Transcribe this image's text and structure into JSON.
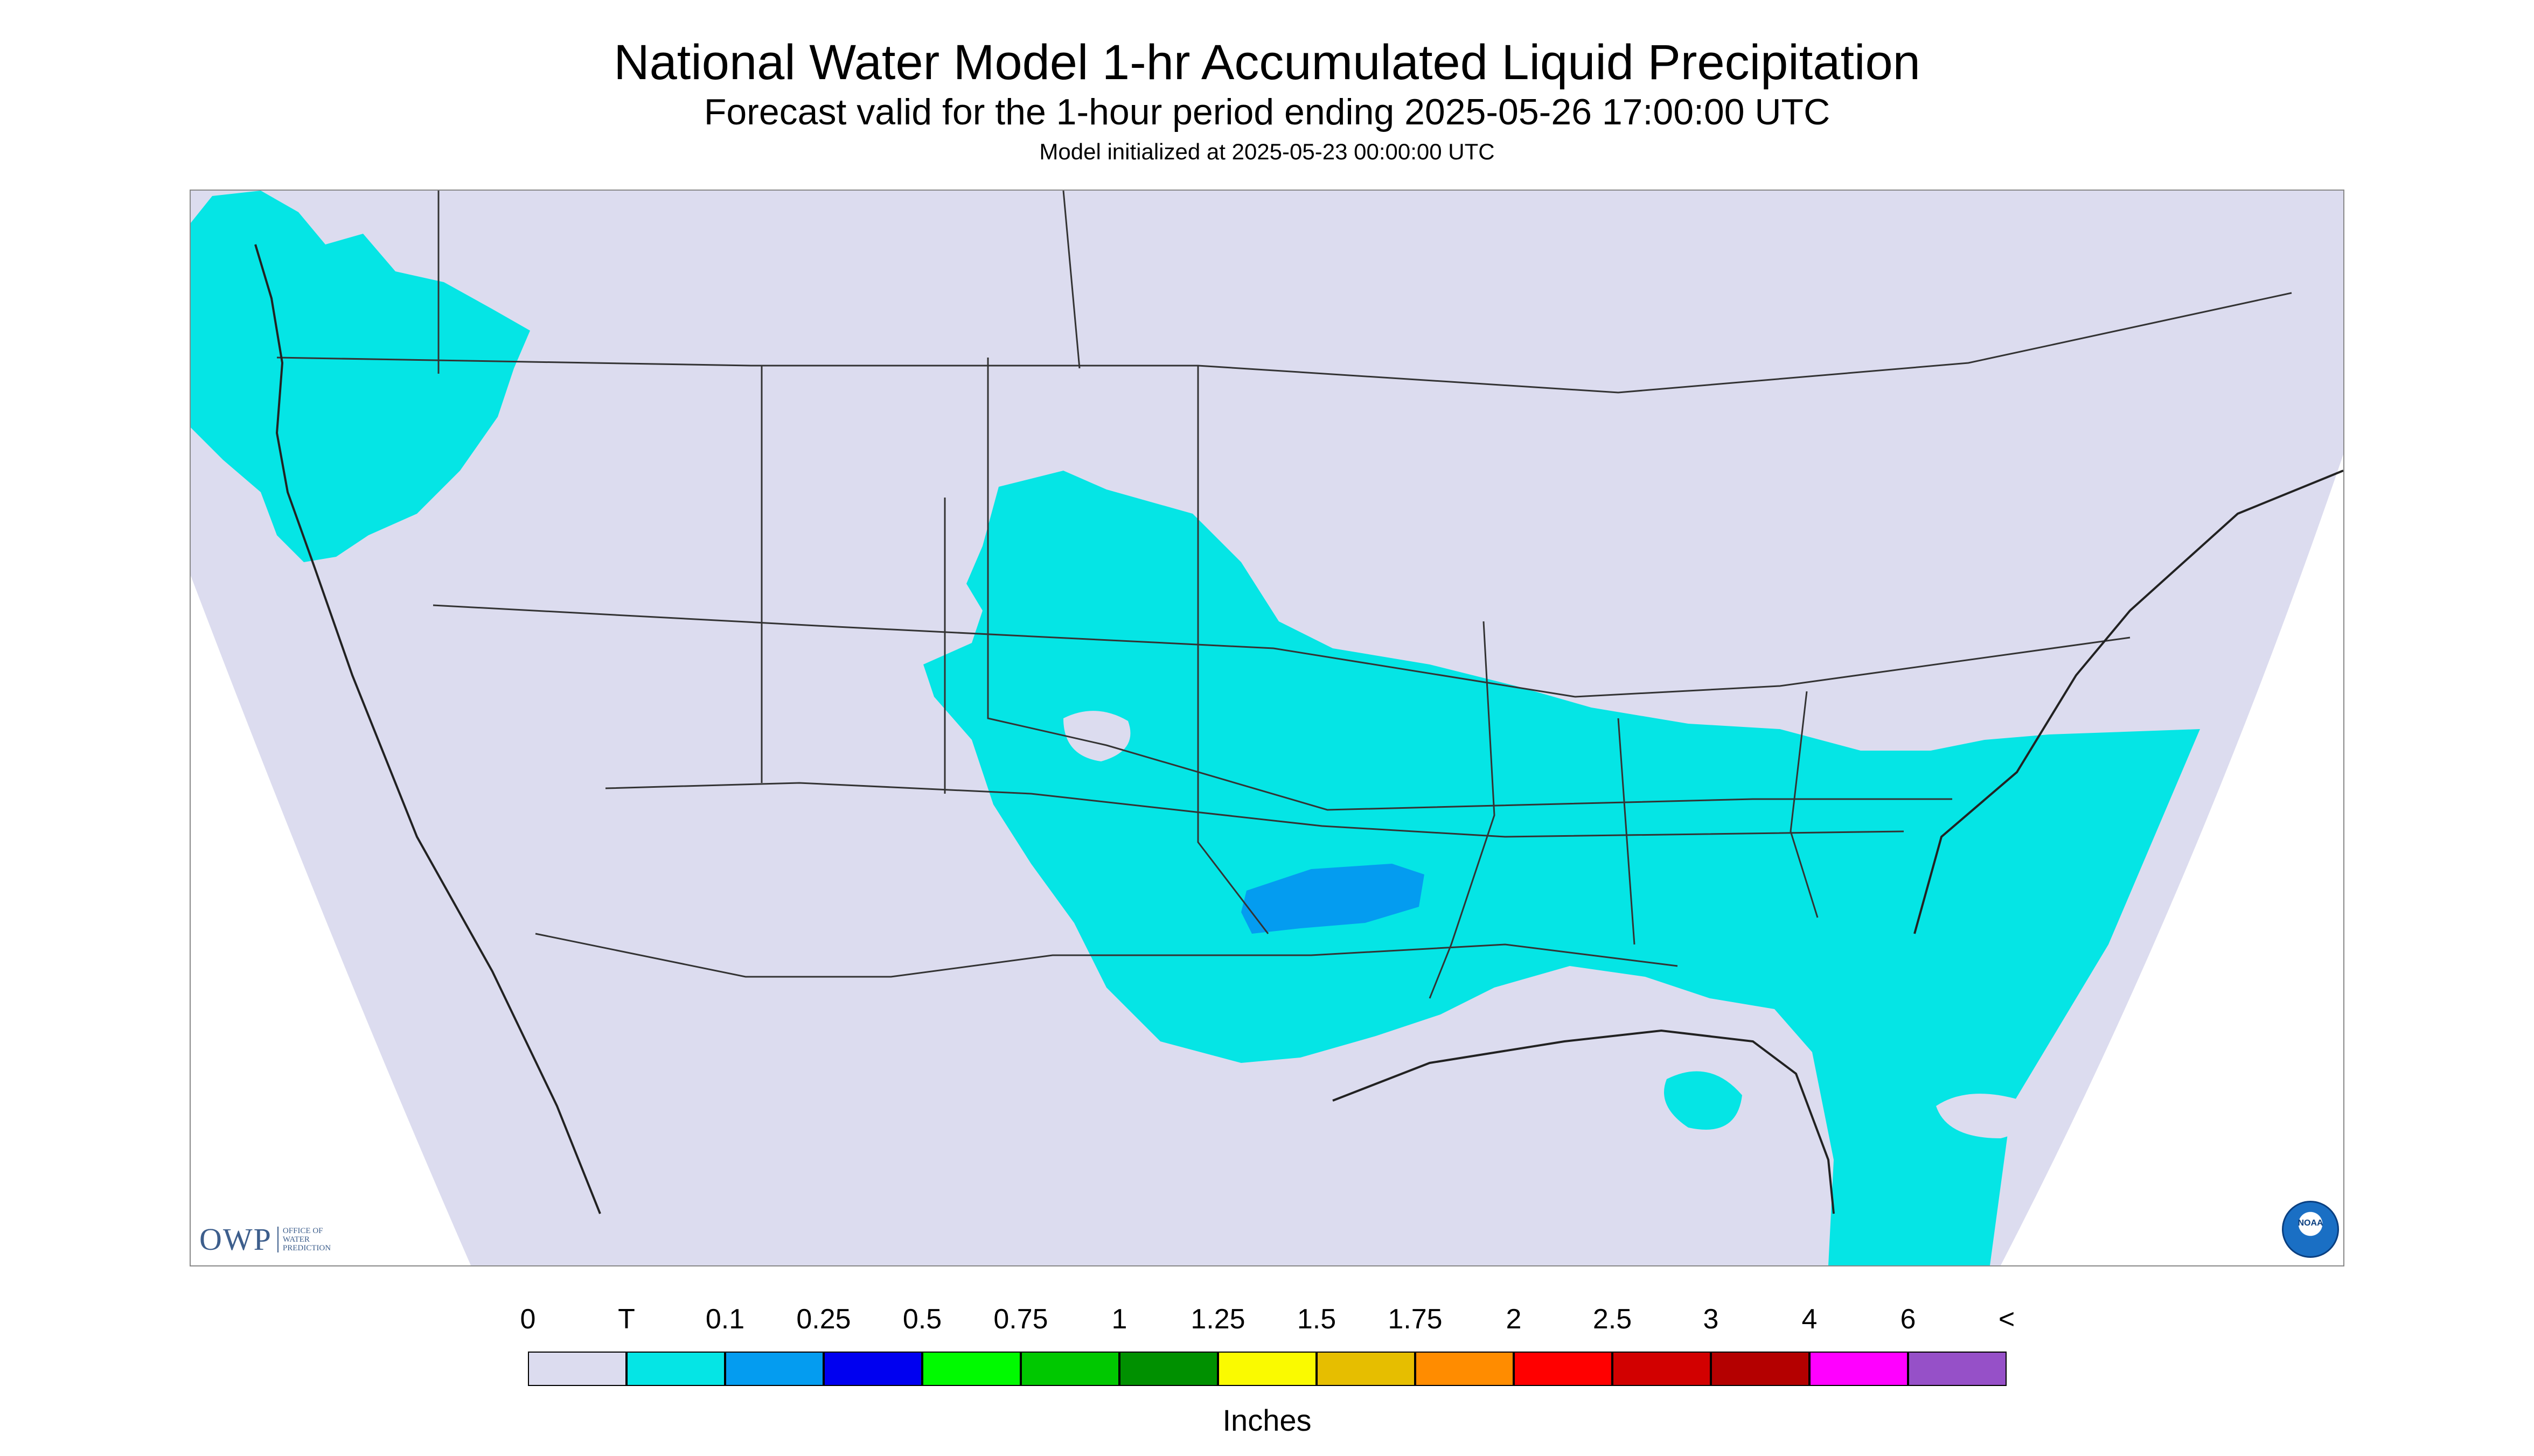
{
  "title": "National Water Model 1-hr Accumulated Liquid Precipitation",
  "subtitle": "Forecast valid for the 1-hour period ending 2025-05-26 17:00:00 UTC",
  "init_text": "Model initialized at 2025-05-23 00:00:00 UTC",
  "logos": {
    "owp_letters": "OWP",
    "owp_name": [
      "OFFICE OF",
      "WATER",
      "PREDICTION"
    ],
    "noaa_letters": "NOAA"
  },
  "legend": {
    "units": "Inches",
    "labels": [
      "0",
      "T",
      "0.1",
      "0.25",
      "0.5",
      "0.75",
      "1",
      "1.25",
      "1.5",
      "1.75",
      "2",
      "2.5",
      "3",
      "4",
      "6",
      "<"
    ],
    "colors": [
      "#dcdcef",
      "#05e5e5",
      "#049cf0",
      "#0000f0",
      "#00fa00",
      "#00c800",
      "#009000",
      "#fafa00",
      "#e6be00",
      "#ff8c00",
      "#ff0000",
      "#d20000",
      "#b40000",
      "#ff00ff",
      "#9650c8"
    ]
  },
  "colors": {
    "background_domain": "#dcdcef",
    "trace": "#05e5e5",
    "light_blue": "#049cf0",
    "outside": "#ffffff"
  }
}
